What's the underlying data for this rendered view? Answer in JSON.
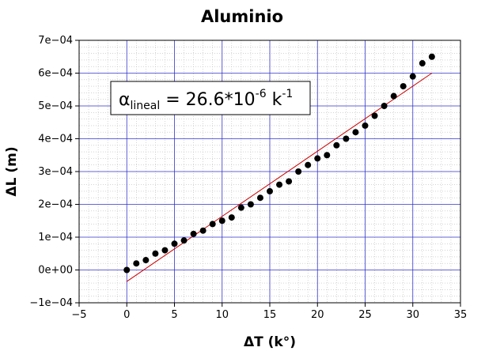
{
  "chart_data": {
    "type": "scatter",
    "title": "Aluminio",
    "xlabel": "ΔT (k°)",
    "ylabel": "ΔL (m)",
    "xlim": [
      -5,
      35
    ],
    "ylim": [
      -0.0001,
      0.0007
    ],
    "x_ticks": [
      -5,
      0,
      5,
      10,
      15,
      20,
      25,
      30,
      35
    ],
    "y_ticks": [
      -0.0001,
      0,
      0.0001,
      0.0002,
      0.0003,
      0.0004,
      0.0005,
      0.0006,
      0.0007
    ],
    "x_tick_labels": [
      "−5",
      "0",
      "5",
      "10",
      "15",
      "20",
      "25",
      "30",
      "35"
    ],
    "y_tick_labels": [
      "−1e−04",
      "0e+00",
      "1e−04",
      "2e−04",
      "3e−04",
      "4e−04",
      "5e−04",
      "6e−04",
      "7e−04"
    ],
    "grid": true,
    "points": {
      "x": [
        0,
        1,
        2,
        3,
        4,
        5,
        6,
        7,
        8,
        9,
        10,
        11,
        12,
        13,
        14,
        15,
        16,
        17,
        18,
        19,
        20,
        21,
        22,
        23,
        24,
        25,
        26,
        27,
        28,
        29,
        30,
        31,
        32
      ],
      "y": [
        0.0,
        2e-05,
        3e-05,
        5e-05,
        6e-05,
        8e-05,
        9e-05,
        0.00011,
        0.00012,
        0.00014,
        0.00015,
        0.00016,
        0.00019,
        0.0002,
        0.00022,
        0.00024,
        0.00026,
        0.00027,
        0.0003,
        0.00032,
        0.00034,
        0.00035,
        0.00038,
        0.0004,
        0.00042,
        0.00044,
        0.00047,
        0.0005,
        0.00053,
        0.00056,
        0.00059,
        0.00063,
        0.00065
      ],
      "color": "#000000"
    },
    "fit_line": {
      "x": [
        0,
        32
      ],
      "y": [
        -3.5e-05,
        0.0006
      ],
      "color": "#cc0000"
    },
    "annotation": {
      "symbol": "α",
      "subscript": "lineal",
      "text": " = 26.6*10",
      "exponent": "-6",
      "unit": " k",
      "unit_exponent": "-1"
    },
    "colors": {
      "major_grid": "#3333cc",
      "minor_grid": "#bbbbbb"
    }
  }
}
